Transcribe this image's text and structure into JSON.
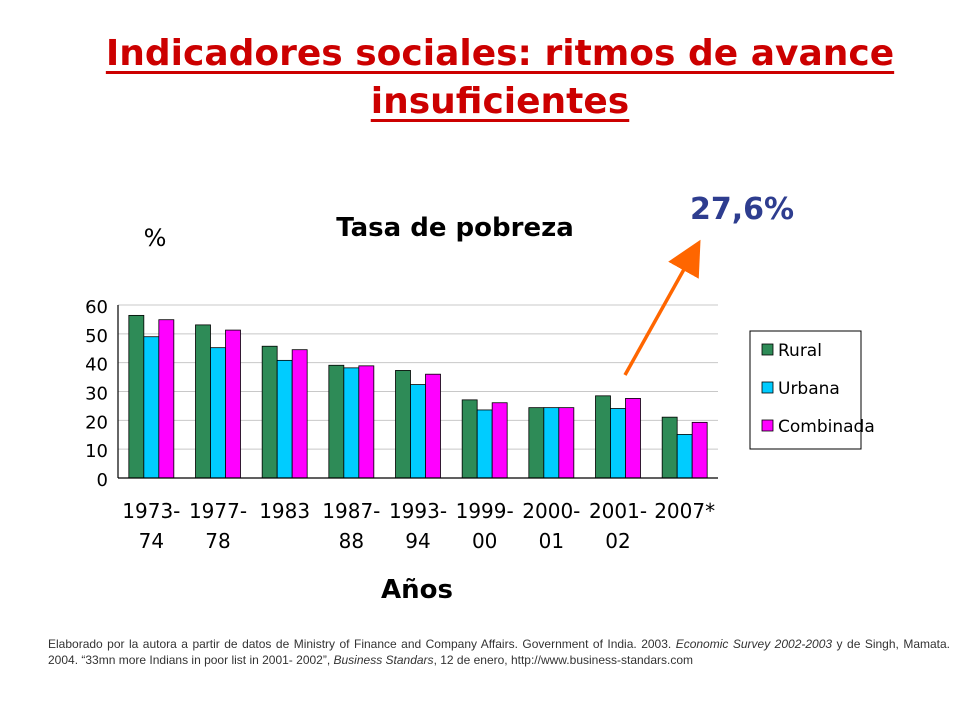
{
  "slide": {
    "title_line1": "Indicadores sociales: ritmos de avance",
    "title_line2": "insuficientes",
    "callout": "27,6%"
  },
  "source": {
    "p1": "Elaborado por la autora a partir de datos de Ministry of Finance and Company Affairs. Government of India. 2003. ",
    "p2": "Economic Survey 2002-2003",
    "p3": " y de Singh, Mamata. 2004. “33mn more Indians in poor list in 2001- 2002”, ",
    "p4": "Business Standars",
    "p5": ", 12 de enero, http://www.business-standars.com"
  },
  "colors": {
    "rural": "#2e8b57",
    "urbana": "#00ccff",
    "combinada": "#ff00ff",
    "arrow": "#ff6600",
    "title": "#cc0000",
    "callout": "#2e3d8f"
  },
  "chart_data": {
    "type": "bar",
    "title": "Tasa de pobreza",
    "ylabel": "%",
    "xlabel": "Años",
    "ylim": [
      0,
      60
    ],
    "yticks": [
      0,
      10,
      20,
      30,
      40,
      50,
      60
    ],
    "grid": true,
    "legend_position": "right",
    "categories": [
      [
        "1973-",
        "74"
      ],
      [
        "1977-",
        "78"
      ],
      [
        "1983"
      ],
      [
        "1987-",
        "88"
      ],
      [
        "1993-",
        "94"
      ],
      [
        "1999-",
        "00"
      ],
      [
        "2000-",
        "01"
      ],
      [
        "2001-",
        "02"
      ],
      [
        "2007*"
      ]
    ],
    "series": [
      {
        "name": "Rural",
        "values": [
          56.4,
          53.1,
          45.7,
          39.1,
          37.3,
          27.1,
          24.4,
          28.5,
          21.1
        ]
      },
      {
        "name": "Urbana",
        "values": [
          49.0,
          45.2,
          40.8,
          38.2,
          32.4,
          23.6,
          24.4,
          24.1,
          15.1
        ]
      },
      {
        "name": "Combinada",
        "values": [
          54.9,
          51.3,
          44.5,
          38.9,
          36.0,
          26.1,
          24.4,
          27.6,
          19.3
        ]
      }
    ]
  }
}
